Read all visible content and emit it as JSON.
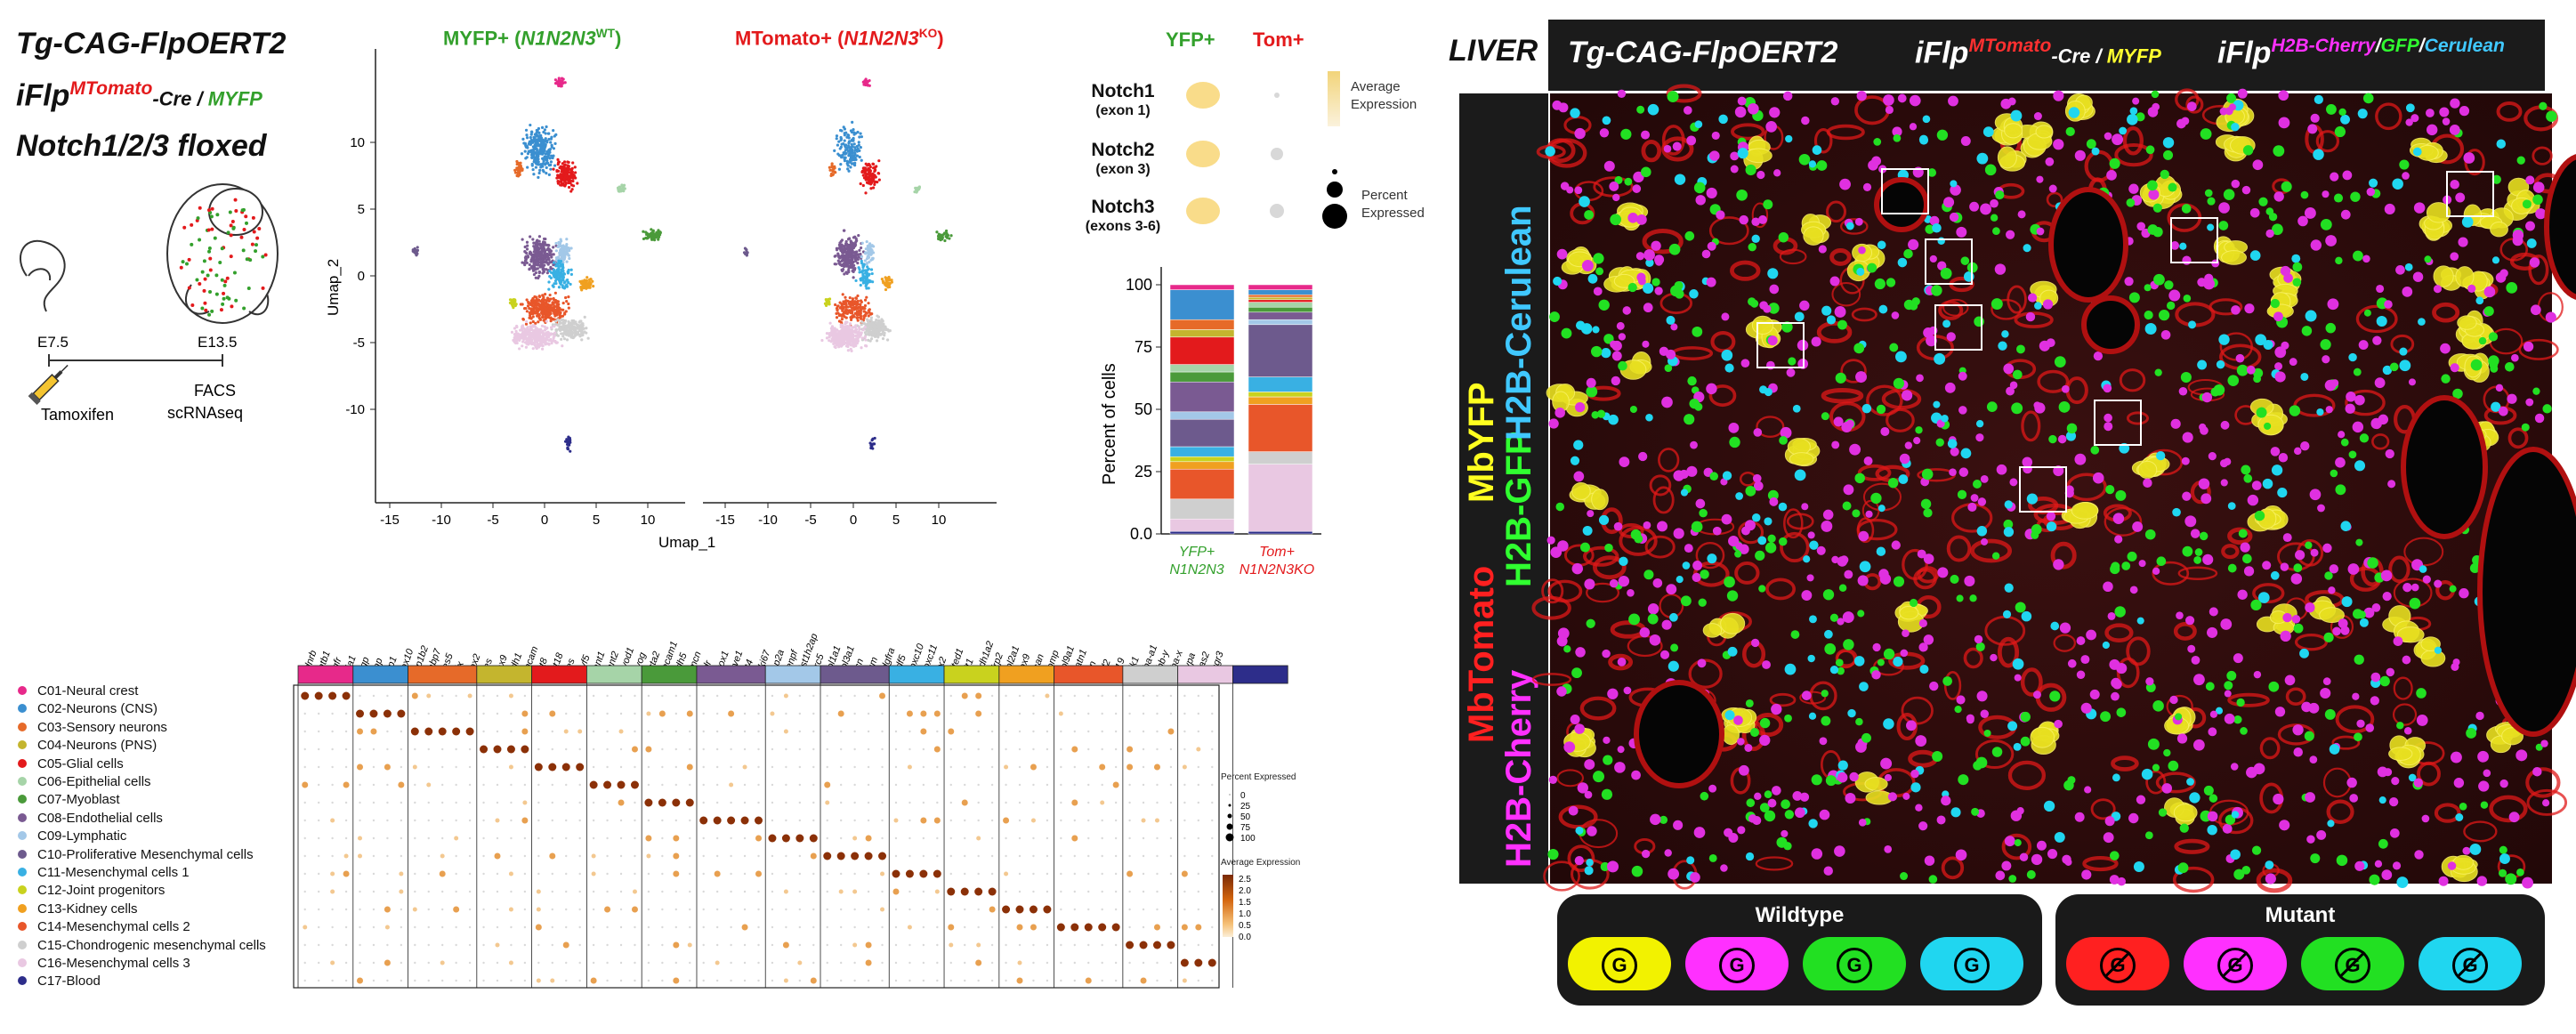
{
  "panel_a": {
    "title_line1": "Tg-CAG-FlpOERT2",
    "title_line2_prefix": "iFlp",
    "title_line2_sup": "MTomato",
    "title_line2_mid": "-Cre / ",
    "title_line2_end": "MYFP",
    "title_line3": "Notch1/2/3 floxed",
    "timeline": {
      "t1": "E7.5",
      "t2": "E13.5",
      "label1": "Tamoxifen",
      "label2_line1": "FACS",
      "label2_line2": "scRNAseq"
    }
  },
  "umap": {
    "title_left_prefix": "MYFP+ (",
    "title_left_gene": "N1N2N3",
    "title_left_sup": "WT",
    "title_left_suffix": ")",
    "title_right_prefix": "MTomato+ (",
    "title_right_gene": "N1N2N3",
    "title_right_sup": "KO",
    "title_right_suffix": ")",
    "xlabel": "Umap_1",
    "ylabel": "Umap_2",
    "yticks": [
      "10",
      "5",
      "0",
      "-5",
      "-10"
    ],
    "xticks": [
      "-15",
      "-10",
      "-5",
      "0",
      "5",
      "10"
    ]
  },
  "dotplot_notch": {
    "col1": "YFP+",
    "col2": "Tom+",
    "rows": [
      {
        "gene": "Notch1",
        "exon": "(exon 1)"
      },
      {
        "gene": "Notch2",
        "exon": "(exon 3)"
      },
      {
        "gene": "Notch3",
        "exon": "(exons 3-6)"
      }
    ],
    "legend_avg_line1": "Average",
    "legend_avg_line2": "Expression",
    "legend_pct_line1": "Percent",
    "legend_pct_line2": "Expressed"
  },
  "stacked_bar": {
    "ylabel": "Percent of cells",
    "yticks": [
      "100",
      "75",
      "50",
      "25",
      "0.0"
    ],
    "cat1_line1": "YFP+",
    "cat1_line2": "N1N2N3",
    "cat2_line1": "Tom+",
    "cat2_line2": "N1N2N3KO"
  },
  "chart_data": {
    "type": "bar",
    "categories": [
      "YFP+",
      "Tom+"
    ],
    "ylabel": "Percent of cells",
    "ylim": [
      0,
      100
    ],
    "series": [
      {
        "name": "C17-Blood",
        "values": [
          1,
          1
        ]
      },
      {
        "name": "C16-Mesenchymal cells 3",
        "values": [
          5,
          27
        ]
      },
      {
        "name": "C15-Chondrogenic mesenchymal cells",
        "values": [
          8,
          5
        ]
      },
      {
        "name": "C14-Mesenchymal cells 2",
        "values": [
          12,
          19
        ]
      },
      {
        "name": "C13-Kidney cells",
        "values": [
          3,
          3
        ]
      },
      {
        "name": "C12-Joint progenitors",
        "values": [
          2,
          2
        ]
      },
      {
        "name": "C11-Mesenchymal cells 1",
        "values": [
          4,
          6
        ]
      },
      {
        "name": "C10-Proliferative Mesenchymal cells",
        "values": [
          11,
          21
        ]
      },
      {
        "name": "C09-Lymphatic",
        "values": [
          3,
          2
        ]
      },
      {
        "name": "C08-Endothelial cells",
        "values": [
          12,
          3
        ]
      },
      {
        "name": "C07-Myoblast",
        "values": [
          4,
          2
        ]
      },
      {
        "name": "C06-Epithelial cells",
        "values": [
          3,
          2
        ]
      },
      {
        "name": "C05-Glial cells",
        "values": [
          11,
          1
        ]
      },
      {
        "name": "C04-Neurons (PNS)",
        "values": [
          3,
          1
        ]
      },
      {
        "name": "C03-Sensory neurons",
        "values": [
          4,
          1
        ]
      },
      {
        "name": "C02-Neurons (CNS)",
        "values": [
          12,
          2
        ]
      },
      {
        "name": "C01-Neural crest",
        "values": [
          2,
          2
        ]
      }
    ]
  },
  "clusters": [
    {
      "label": "C01-Neural crest",
      "color": "#e7298a"
    },
    {
      "label": "C02-Neurons (CNS)",
      "color": "#3b8fd0"
    },
    {
      "label": "C03-Sensory neurons",
      "color": "#e66a29"
    },
    {
      "label": "C04-Neurons (PNS)",
      "color": "#c4b52e"
    },
    {
      "label": "C05-Glial cells",
      "color": "#e31a1c"
    },
    {
      "label": "C06-Epithelial cells",
      "color": "#a6d4a8"
    },
    {
      "label": "C07-Myoblast",
      "color": "#4a9a3a"
    },
    {
      "label": "C08-Endothelial cells",
      "color": "#7a5a92"
    },
    {
      "label": "C09-Lymphatic",
      "color": "#a3c8e8"
    },
    {
      "label": "C10-Proliferative Mesenchymal cells",
      "color": "#6d5a8d"
    },
    {
      "label": "C11-Mesenchymal cells 1",
      "color": "#39b0e3"
    },
    {
      "label": "C12-Joint progenitors",
      "color": "#c9d21e"
    },
    {
      "label": "C13-Kidney cells",
      "color": "#f0a020"
    },
    {
      "label": "C14-Mesenchymal cells 2",
      "color": "#e8562a"
    },
    {
      "label": "C15-Chondrogenic mesenchymal cells",
      "color": "#cfcfcf"
    },
    {
      "label": "C16-Mesenchymal cells 3",
      "color": "#e9c8e2"
    },
    {
      "label": "C17-Blood",
      "color": "#2d2d8a"
    }
  ],
  "markers": [
    "Ednrb",
    "Sntb1",
    "Ngfr",
    "Gja1",
    "Mgp",
    "Cnp",
    "Plp1",
    "Sox10",
    "Atp1b2",
    "Fabp7",
    "Hes5",
    "Dlx",
    "Sox2",
    "Nes",
    "Lhx9",
    "Cdh1",
    "Epcam",
    "Krt8",
    "Krt18",
    "Des",
    "Myf5",
    "Tnnt1",
    "Tnnt2",
    "Myod1",
    "Myog",
    "Acta2",
    "Pecam1",
    "Cdh5",
    "Emcn",
    "Kdr",
    "Prox1",
    "Lyve1",
    "Flt4",
    "Mki67",
    "Top2a",
    "Cenpf",
    "Hist1h2ap",
    "Birc5",
    "Col1a1",
    "Col3a1",
    "Dcn",
    "Lum",
    "Pdgfra",
    "Gdf5",
    "Hoxc10",
    "Hoxc11",
    "Six2",
    "Cited1",
    "Wt1",
    "Aldh1a2",
    "Sfrp2",
    "Col2a1",
    "Sox9",
    "Acan",
    "Comp",
    "Col9a1",
    "Matn1",
    "Ptn",
    "Igf2",
    "H19",
    "Dlk1",
    "Hba-a1",
    "Hbb-y",
    "Hba-x",
    "Gypa",
    "Alas2",
    "Fcgr3"
  ],
  "dotplot_legend": {
    "pct_title": "Percent Expressed",
    "pct_levels": [
      "0",
      "25",
      "50",
      "75",
      "100"
    ],
    "avg_title": "Average Expression",
    "avg_levels": [
      "2.5",
      "2.0",
      "1.5",
      "1.0",
      "0.5",
      "0.0"
    ]
  },
  "liver": {
    "label": "LIVER",
    "header_title1": "Tg-CAG-FlpOERT2",
    "header_title2_prefix": "iFlp",
    "header_title2_sup": "MTomato",
    "header_title2_mid": "-Cre / ",
    "header_title2_end": "MYFP",
    "header_title3_prefix": "iFlp",
    "header_title3_sup1": "H2B-Cherry",
    "header_title3_sep1": "/",
    "header_title3_sup2": "GFP",
    "header_title3_sep2": "/",
    "header_title3_sup3": "Cerulean",
    "side_labels": [
      {
        "text": "MbTomato",
        "color": "#ff2020"
      },
      {
        "text": "H2B-Cherry",
        "color": "#ff30ff"
      },
      {
        "text": "H2B-GFP",
        "color": "#30ff30"
      },
      {
        "text": "MbYFP",
        "color": "#ffff20"
      },
      {
        "text": "H2B-Cerulean",
        "color": "#40c8ff"
      }
    ]
  },
  "genotype_legend": {
    "wildtype_title": "Wildtype",
    "mutant_title": "Mutant",
    "symbol": "G",
    "wildtype_colors": [
      "#f2f200",
      "#ff30ff",
      "#22e022",
      "#20d6f0"
    ],
    "mutant_colors": [
      "#ff2020",
      "#ff30ff",
      "#22e022",
      "#20d6f0"
    ]
  }
}
